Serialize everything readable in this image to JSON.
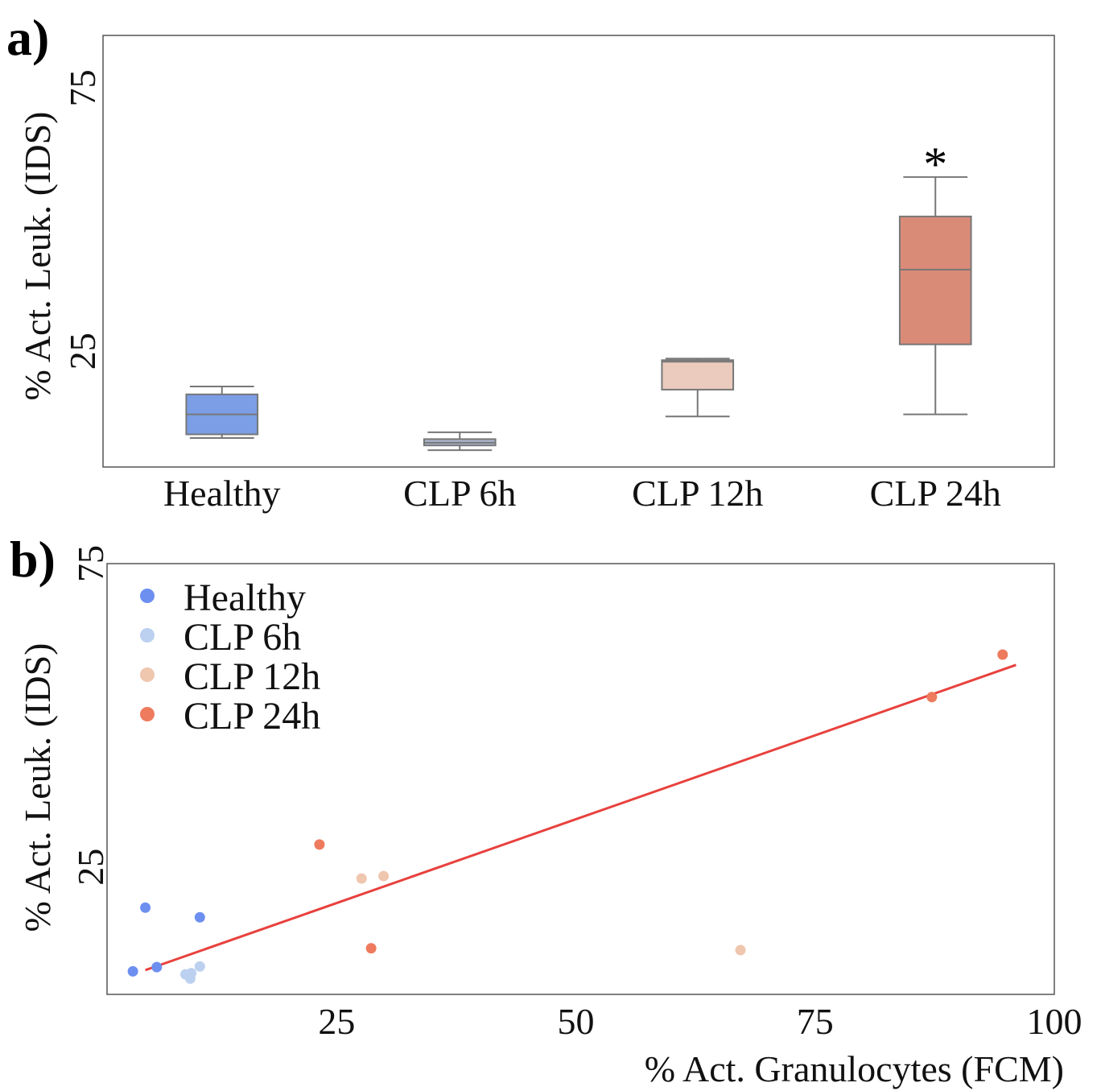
{
  "chart_data": [
    {
      "panel": "a)",
      "type": "box",
      "ylabel": "% Act. Leuk. (IDS)",
      "yticks": [
        25,
        75
      ],
      "ylim": [
        3,
        85
      ],
      "categories": [
        "Healthy",
        "CLP 6h",
        "CLP 12h",
        "CLP 24h"
      ],
      "boxes": [
        {
          "category": "Healthy",
          "min": 8.5,
          "q1": 9.2,
          "median": 13.0,
          "q3": 16.8,
          "max": 18.3,
          "color": "#7b9ee6"
        },
        {
          "category": "CLP 6h",
          "min": 6.2,
          "q1": 7.1,
          "median": 7.6,
          "q3": 8.3,
          "max": 9.6,
          "color": "#a9b4cc"
        },
        {
          "category": "CLP 12h",
          "min": 12.6,
          "q1": 17.7,
          "median": 23.0,
          "q3": 23.3,
          "max": 23.6,
          "color": "#ebcbbd"
        },
        {
          "category": "CLP 24h",
          "min": 13.0,
          "q1": 26.3,
          "median": 40.5,
          "q3": 50.6,
          "max": 58.1,
          "color": "#da8b78",
          "annotation": "*"
        }
      ]
    },
    {
      "panel": "b)",
      "type": "scatter",
      "xlabel": "% Act. Granulocytes (FCM)",
      "ylabel": "% Act. Leuk. (IDS)",
      "xticks": [
        25,
        50,
        75,
        100
      ],
      "yticks": [
        25,
        75
      ],
      "xlim": [
        1,
        100
      ],
      "ylim": [
        4,
        75
      ],
      "legend_position": "top-left",
      "series": [
        {
          "name": "Healthy",
          "color": "#6d8ff0",
          "points": [
            [
              3.7,
              7.8
            ],
            [
              6.2,
              8.5
            ],
            [
              5.0,
              18.3
            ],
            [
              10.7,
              16.7
            ]
          ]
        },
        {
          "name": "CLP 6h",
          "color": "#bcd0f0",
          "points": [
            [
              9.2,
              7.3
            ],
            [
              9.8,
              7.5
            ],
            [
              9.7,
              6.6
            ],
            [
              10.7,
              8.6
            ]
          ]
        },
        {
          "name": "CLP 12h",
          "color": "#efc6ae",
          "points": [
            [
              27.6,
              23.1
            ],
            [
              29.9,
              23.5
            ],
            [
              67.2,
              11.3
            ]
          ]
        },
        {
          "name": "CLP 24h",
          "color": "#ee7b5e",
          "points": [
            [
              23.2,
              28.7
            ],
            [
              28.6,
              11.6
            ],
            [
              87.2,
              53.0
            ],
            [
              94.6,
              60.0
            ]
          ]
        }
      ],
      "trendline": {
        "color": "#e8413d",
        "points": [
          [
            5.0,
            8.0
          ],
          [
            96.0,
            58.3
          ]
        ]
      }
    }
  ]
}
